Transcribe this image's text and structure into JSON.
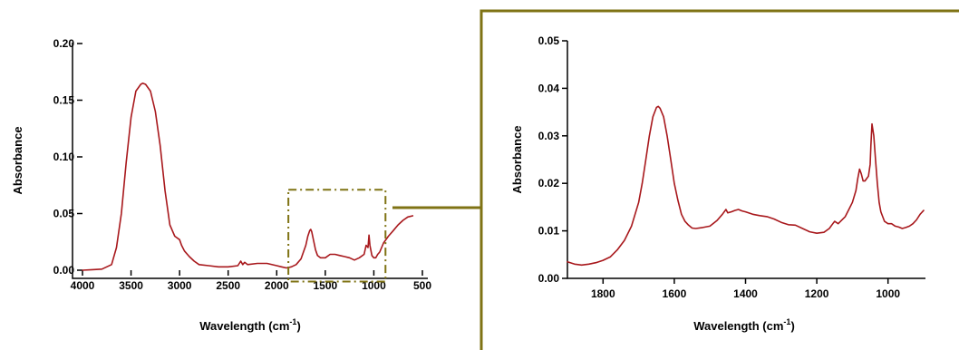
{
  "colors": {
    "series": "#a8181c",
    "frame": "#7f7314"
  },
  "chart_data": [
    {
      "type": "line",
      "title": "",
      "xlabel": "Wavelength (cm",
      "xlabel_sup": "-1",
      "xlabel_close": ")",
      "ylabel": "Absorbance",
      "xlim": [
        4000,
        500
      ],
      "ylim": [
        0,
        0.2
      ],
      "x_reversed": true,
      "xticks": [
        4000,
        3500,
        3000,
        2500,
        2000,
        1500,
        1000,
        500
      ],
      "xtick_labels": [
        "4000",
        "3500",
        "3000",
        "2500",
        "2000",
        "1500",
        "1000",
        "500"
      ],
      "yticks": [
        0,
        0.05,
        0.1,
        0.15,
        0.2
      ],
      "ytick_labels": [
        "0.00",
        "0.05",
        "0.10",
        "0.15",
        "0.20"
      ],
      "series": [
        {
          "x": [
            4000,
            3900,
            3800,
            3700,
            3650,
            3600,
            3550,
            3500,
            3450,
            3400,
            3380,
            3350,
            3300,
            3250,
            3200,
            3150,
            3100,
            3050,
            3000,
            2980,
            2950,
            2900,
            2850,
            2800,
            2700,
            2600,
            2500,
            2400,
            2370,
            2350,
            2330,
            2300,
            2200,
            2100,
            2000,
            1950,
            1900,
            1850,
            1800,
            1750,
            1700,
            1680,
            1660,
            1650,
            1640,
            1620,
            1600,
            1580,
            1550,
            1500,
            1450,
            1400,
            1350,
            1300,
            1250,
            1200,
            1150,
            1100,
            1080,
            1060,
            1050,
            1040,
            1020,
            1000,
            980,
            960,
            940,
            920,
            900,
            850,
            800,
            750,
            700,
            650,
            600
          ],
          "values": [
            0.0,
            0.0005,
            0.001,
            0.005,
            0.02,
            0.05,
            0.095,
            0.135,
            0.158,
            0.164,
            0.165,
            0.164,
            0.158,
            0.14,
            0.11,
            0.07,
            0.04,
            0.03,
            0.027,
            0.022,
            0.017,
            0.012,
            0.008,
            0.005,
            0.004,
            0.003,
            0.003,
            0.004,
            0.008,
            0.005,
            0.007,
            0.005,
            0.006,
            0.006,
            0.004,
            0.003,
            0.002,
            0.003,
            0.005,
            0.01,
            0.022,
            0.03,
            0.035,
            0.036,
            0.034,
            0.026,
            0.018,
            0.013,
            0.011,
            0.011,
            0.014,
            0.014,
            0.013,
            0.012,
            0.011,
            0.009,
            0.011,
            0.014,
            0.022,
            0.02,
            0.031,
            0.022,
            0.013,
            0.011,
            0.011,
            0.014,
            0.016,
            0.02,
            0.024,
            0.03,
            0.035,
            0.04,
            0.044,
            0.047,
            0.048
          ]
        }
      ],
      "highlight_box": {
        "x": [
          1880,
          880
        ],
        "y": [
          -0.01,
          0.071
        ]
      }
    },
    {
      "type": "line",
      "title": "",
      "xlabel": "Wavelength (cm",
      "xlabel_sup": "-1",
      "xlabel_close": ")",
      "ylabel": "Absorbance",
      "xlim": [
        1900,
        900
      ],
      "ylim": [
        0,
        0.05
      ],
      "x_reversed": true,
      "xticks": [
        1800,
        1600,
        1400,
        1200,
        1000
      ],
      "xtick_labels": [
        "1800",
        "1600",
        "1400",
        "1200",
        "1000"
      ],
      "yticks": [
        0,
        0.01,
        0.02,
        0.03,
        0.04,
        0.05
      ],
      "ytick_labels": [
        "0.00",
        "0.01",
        "0.02",
        "0.03",
        "0.04",
        "0.05"
      ],
      "series": [
        {
          "x": [
            1900,
            1880,
            1860,
            1840,
            1820,
            1800,
            1780,
            1760,
            1740,
            1720,
            1700,
            1690,
            1680,
            1670,
            1660,
            1650,
            1645,
            1640,
            1630,
            1620,
            1610,
            1600,
            1590,
            1580,
            1570,
            1560,
            1550,
            1540,
            1520,
            1500,
            1480,
            1465,
            1455,
            1450,
            1440,
            1430,
            1420,
            1410,
            1400,
            1380,
            1360,
            1340,
            1320,
            1300,
            1280,
            1260,
            1240,
            1220,
            1200,
            1180,
            1165,
            1155,
            1150,
            1140,
            1120,
            1110,
            1100,
            1090,
            1085,
            1080,
            1075,
            1070,
            1065,
            1060,
            1055,
            1050,
            1048,
            1045,
            1040,
            1035,
            1030,
            1025,
            1020,
            1010,
            1000,
            990,
            980,
            970,
            960,
            950,
            940,
            930,
            920,
            910,
            900
          ],
          "values": [
            0.0035,
            0.003,
            0.0028,
            0.003,
            0.0033,
            0.0038,
            0.0045,
            0.006,
            0.008,
            0.011,
            0.016,
            0.02,
            0.025,
            0.03,
            0.034,
            0.036,
            0.0362,
            0.0358,
            0.034,
            0.03,
            0.025,
            0.02,
            0.0165,
            0.0135,
            0.012,
            0.0112,
            0.0106,
            0.0105,
            0.0107,
            0.011,
            0.0122,
            0.0135,
            0.0145,
            0.0138,
            0.014,
            0.0143,
            0.0145,
            0.0142,
            0.014,
            0.0135,
            0.0132,
            0.013,
            0.0125,
            0.0118,
            0.0113,
            0.0112,
            0.0105,
            0.0098,
            0.0095,
            0.0097,
            0.0105,
            0.0115,
            0.012,
            0.0115,
            0.013,
            0.0145,
            0.016,
            0.0185,
            0.021,
            0.023,
            0.022,
            0.0205,
            0.0205,
            0.021,
            0.0215,
            0.024,
            0.028,
            0.0325,
            0.03,
            0.025,
            0.02,
            0.016,
            0.014,
            0.012,
            0.0115,
            0.0115,
            0.011,
            0.0108,
            0.0105,
            0.0107,
            0.011,
            0.0115,
            0.0123,
            0.0135,
            0.0143
          ]
        }
      ]
    }
  ]
}
